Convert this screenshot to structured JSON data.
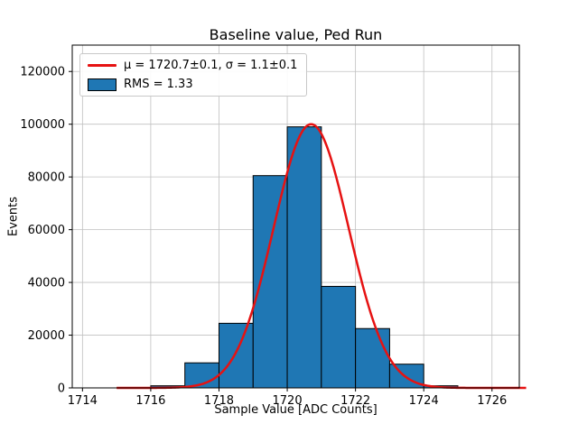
{
  "chart_data": {
    "type": "bar",
    "subtype": "histogram-with-gaussian-fit",
    "title": "Baseline value, Ped Run",
    "xlabel": "Sample Value [ADC Counts]",
    "ylabel": "Events",
    "xlim": [
      1713.7,
      1726.8
    ],
    "ylim": [
      0,
      130000
    ],
    "xticks": [
      1714,
      1716,
      1718,
      1720,
      1722,
      1724,
      1726
    ],
    "yticks": [
      0,
      20000,
      40000,
      60000,
      80000,
      100000,
      120000
    ],
    "grid": true,
    "legend_position": "upper left",
    "bar_color": "#1f77b4",
    "bar_edge_color": "#000000",
    "line_color": "#e61212",
    "bins": {
      "edges": [
        1716,
        1717,
        1718,
        1719,
        1720,
        1721,
        1722,
        1723,
        1724,
        1725
      ],
      "counts": [
        800,
        9500,
        24500,
        80500,
        99000,
        38500,
        22500,
        9000,
        800
      ]
    },
    "fit": {
      "mu": 1720.7,
      "sigma": 1.1,
      "amplitude": 100000,
      "x_start": 1715.0,
      "x_end": 1727.0
    },
    "legend": [
      {
        "type": "line",
        "label": "μ = 1720.7±0.1, σ = 1.1±0.1"
      },
      {
        "type": "patch",
        "label": "RMS = 1.33"
      }
    ]
  }
}
